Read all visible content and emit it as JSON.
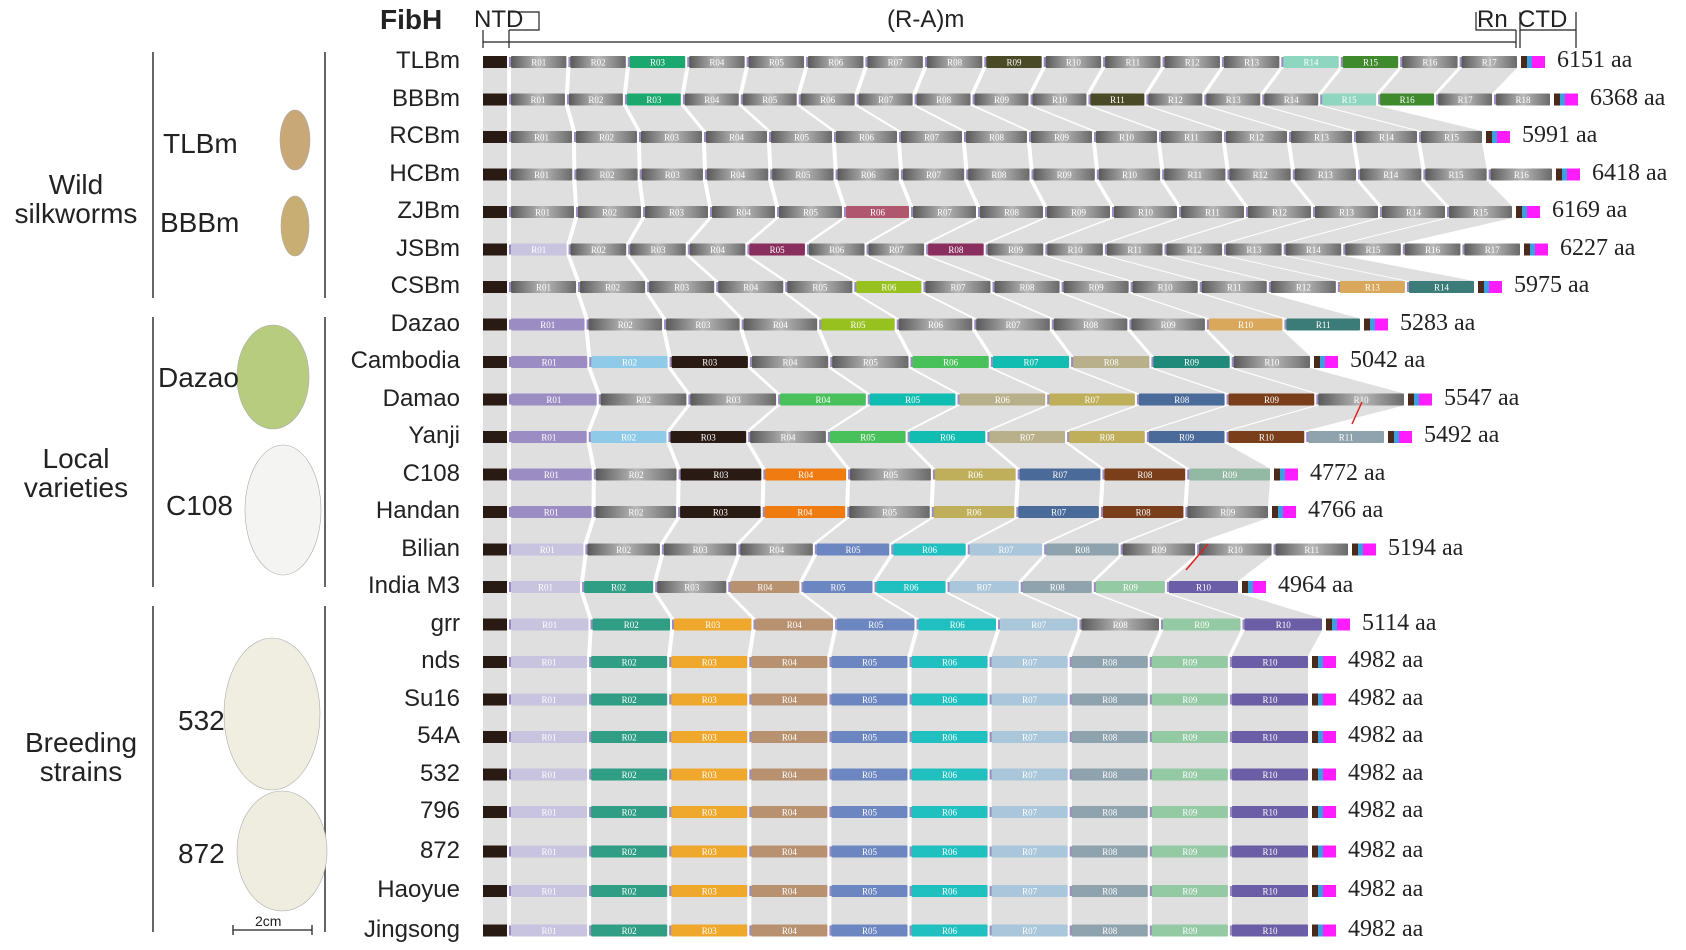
{
  "header": {
    "gene": "FibH",
    "ntd": "NTD",
    "repeats": "(R-A)m",
    "rn": "Rn",
    "ctd": "CTD"
  },
  "groups": [
    {
      "label": [
        "Wild",
        "silkworms"
      ],
      "cocoons": [
        "TLBm",
        "BBBm"
      ]
    },
    {
      "label": [
        "Local",
        "varieties"
      ],
      "cocoons": [
        "Dazao",
        "C108"
      ]
    },
    {
      "label": [
        "Breeding",
        "strains"
      ],
      "cocoons": [
        "532",
        "872"
      ]
    }
  ],
  "scale_bar": "2cm",
  "colors": {
    "ntd": "#2a1a14",
    "grey_segment": "#8c8c8c",
    "link": "#d4d4d4",
    "lavender": "#c8c3df",
    "purple": "#9b8cc4",
    "teal": "#2f9e84",
    "orange": "#efa72c",
    "tan": "#b89270",
    "blue": "#6b86c0",
    "cyan": "#20c0c0",
    "lightblue": "#a9c6da",
    "slate": "#8ea3ad",
    "mint": "#93c9a3",
    "violet": "#6b5ea6",
    "magenta": "#ff1dff",
    "mutation": "#e02020"
  },
  "strains": [
    {
      "name": "TLBm",
      "length": "6151 aa",
      "repeats": [
        {
          "label": "R01",
          "color": "grey"
        },
        {
          "label": "R02",
          "color": "grey"
        },
        {
          "label": "R03",
          "color": "#1aa86f"
        },
        {
          "label": "R04",
          "color": "grey"
        },
        {
          "label": "R05",
          "color": "grey"
        },
        {
          "label": "R06",
          "color": "grey"
        },
        {
          "label": "R07",
          "color": "grey"
        },
        {
          "label": "R08",
          "color": "grey"
        },
        {
          "label": "R09",
          "color": "#4a4a26"
        },
        {
          "label": "R10",
          "color": "grey"
        },
        {
          "label": "R11",
          "color": "grey"
        },
        {
          "label": "R12",
          "color": "grey"
        },
        {
          "label": "R13",
          "color": "grey"
        },
        {
          "label": "R14",
          "color": "#8fd6c0"
        },
        {
          "label": "R15",
          "color": "#3f8a2c"
        },
        {
          "label": "R16",
          "color": "grey"
        },
        {
          "label": "R17",
          "color": "grey"
        }
      ]
    },
    {
      "name": "BBBm",
      "length": "6368 aa",
      "repeats": [
        {
          "label": "R01",
          "color": "grey"
        },
        {
          "label": "R02",
          "color": "grey"
        },
        {
          "label": "R03",
          "color": "#1aa86f"
        },
        {
          "label": "R04",
          "color": "grey"
        },
        {
          "label": "R05",
          "color": "grey"
        },
        {
          "label": "R06",
          "color": "grey"
        },
        {
          "label": "R07",
          "color": "grey"
        },
        {
          "label": "R08",
          "color": "grey"
        },
        {
          "label": "R09",
          "color": "grey"
        },
        {
          "label": "R10",
          "color": "grey"
        },
        {
          "label": "R11",
          "color": "#4a4a26"
        },
        {
          "label": "R12",
          "color": "grey"
        },
        {
          "label": "R13",
          "color": "grey"
        },
        {
          "label": "R14",
          "color": "grey"
        },
        {
          "label": "R15",
          "color": "#8fd6c0"
        },
        {
          "label": "R16",
          "color": "#3f8a2c"
        },
        {
          "label": "R17",
          "color": "grey"
        },
        {
          "label": "R18",
          "color": "grey"
        }
      ]
    },
    {
      "name": "RCBm",
      "length": "5991 aa",
      "repeats": [
        {
          "label": "R01",
          "color": "grey"
        },
        {
          "label": "R02",
          "color": "grey"
        },
        {
          "label": "R03",
          "color": "grey"
        },
        {
          "label": "R04",
          "color": "grey"
        },
        {
          "label": "R05",
          "color": "grey"
        },
        {
          "label": "R06",
          "color": "grey"
        },
        {
          "label": "R07",
          "color": "grey"
        },
        {
          "label": "R08",
          "color": "grey"
        },
        {
          "label": "R09",
          "color": "grey"
        },
        {
          "label": "R10",
          "color": "grey"
        },
        {
          "label": "R11",
          "color": "grey"
        },
        {
          "label": "R12",
          "color": "grey"
        },
        {
          "label": "R13",
          "color": "grey"
        },
        {
          "label": "R14",
          "color": "grey"
        },
        {
          "label": "R15",
          "color": "grey"
        }
      ]
    },
    {
      "name": "HCBm",
      "length": "6418 aa",
      "repeats": [
        {
          "label": "R01",
          "color": "grey"
        },
        {
          "label": "R02",
          "color": "grey"
        },
        {
          "label": "R03",
          "color": "grey"
        },
        {
          "label": "R04",
          "color": "grey"
        },
        {
          "label": "R05",
          "color": "grey"
        },
        {
          "label": "R06",
          "color": "grey"
        },
        {
          "label": "R07",
          "color": "grey"
        },
        {
          "label": "R08",
          "color": "grey"
        },
        {
          "label": "R09",
          "color": "grey"
        },
        {
          "label": "R10",
          "color": "grey"
        },
        {
          "label": "R11",
          "color": "grey"
        },
        {
          "label": "R12",
          "color": "grey"
        },
        {
          "label": "R13",
          "color": "grey"
        },
        {
          "label": "R14",
          "color": "grey"
        },
        {
          "label": "R15",
          "color": "grey"
        },
        {
          "label": "R16",
          "color": "grey"
        }
      ]
    },
    {
      "name": "ZJBm",
      "length": "6169 aa",
      "repeats": [
        {
          "label": "R01",
          "color": "grey"
        },
        {
          "label": "R02",
          "color": "grey"
        },
        {
          "label": "R03",
          "color": "grey"
        },
        {
          "label": "R04",
          "color": "grey"
        },
        {
          "label": "R05",
          "color": "grey"
        },
        {
          "label": "R06",
          "color": "#b0566e"
        },
        {
          "label": "R07",
          "color": "grey"
        },
        {
          "label": "R08",
          "color": "grey"
        },
        {
          "label": "R09",
          "color": "grey"
        },
        {
          "label": "R10",
          "color": "grey"
        },
        {
          "label": "R11",
          "color": "grey"
        },
        {
          "label": "R12",
          "color": "grey"
        },
        {
          "label": "R13",
          "color": "grey"
        },
        {
          "label": "R14",
          "color": "grey"
        },
        {
          "label": "R15",
          "color": "grey"
        }
      ]
    },
    {
      "name": "JSBm",
      "length": "6227 aa",
      "repeats": [
        {
          "label": "R01",
          "color": "#c8c3df"
        },
        {
          "label": "R02",
          "color": "grey"
        },
        {
          "label": "R03",
          "color": "grey"
        },
        {
          "label": "R04",
          "color": "grey"
        },
        {
          "label": "R05",
          "color": "#8a2e5e"
        },
        {
          "label": "R06",
          "color": "grey"
        },
        {
          "label": "R07",
          "color": "grey"
        },
        {
          "label": "R08",
          "color": "#8a2e5e"
        },
        {
          "label": "R09",
          "color": "grey"
        },
        {
          "label": "R10",
          "color": "grey"
        },
        {
          "label": "R11",
          "color": "grey"
        },
        {
          "label": "R12",
          "color": "grey"
        },
        {
          "label": "R13",
          "color": "grey"
        },
        {
          "label": "R14",
          "color": "grey"
        },
        {
          "label": "R15",
          "color": "grey"
        },
        {
          "label": "R16",
          "color": "grey"
        },
        {
          "label": "R17",
          "color": "grey"
        }
      ]
    },
    {
      "name": "CSBm",
      "length": "5975 aa",
      "repeats": [
        {
          "label": "R01",
          "color": "grey"
        },
        {
          "label": "R02",
          "color": "grey"
        },
        {
          "label": "R03",
          "color": "grey"
        },
        {
          "label": "R04",
          "color": "grey"
        },
        {
          "label": "R05",
          "color": "grey"
        },
        {
          "label": "R06",
          "color": "#96c11f"
        },
        {
          "label": "R07",
          "color": "grey"
        },
        {
          "label": "R08",
          "color": "grey"
        },
        {
          "label": "R09",
          "color": "grey"
        },
        {
          "label": "R10",
          "color": "grey"
        },
        {
          "label": "R11",
          "color": "grey"
        },
        {
          "label": "R12",
          "color": "grey"
        },
        {
          "label": "R13",
          "color": "#d9a85a"
        },
        {
          "label": "R14",
          "color": "#3c7c78"
        }
      ]
    },
    {
      "name": "Dazao",
      "length": "5283 aa",
      "repeats": [
        {
          "label": "R01",
          "color": "#9b8cc4"
        },
        {
          "label": "R02",
          "color": "grey"
        },
        {
          "label": "R03",
          "color": "grey"
        },
        {
          "label": "R04",
          "color": "grey"
        },
        {
          "label": "R05",
          "color": "#96c11f"
        },
        {
          "label": "R06",
          "color": "grey"
        },
        {
          "label": "R07",
          "color": "grey"
        },
        {
          "label": "R08",
          "color": "grey"
        },
        {
          "label": "R09",
          "color": "grey"
        },
        {
          "label": "R10",
          "color": "#d9a85a"
        },
        {
          "label": "R11",
          "color": "#3c7c78"
        }
      ]
    },
    {
      "name": "Cambodia",
      "length": "5042 aa",
      "repeats": [
        {
          "label": "R01",
          "color": "#9b8cc4"
        },
        {
          "label": "R02",
          "color": "#8fcbe8"
        },
        {
          "label": "R03",
          "color": "#2a1a14"
        },
        {
          "label": "R04",
          "color": "grey"
        },
        {
          "label": "R05",
          "color": "grey"
        },
        {
          "label": "R06",
          "color": "#49c15a"
        },
        {
          "label": "R07",
          "color": "#10bdb0"
        },
        {
          "label": "R08",
          "color": "#b8b08a"
        },
        {
          "label": "R09",
          "color": "#1f8a7a"
        },
        {
          "label": "R10",
          "color": "grey"
        }
      ]
    },
    {
      "name": "Damao",
      "length": "5547 aa",
      "repeats": [
        {
          "label": "R01",
          "color": "#9b8cc4"
        },
        {
          "label": "R02",
          "color": "grey"
        },
        {
          "label": "R03",
          "color": "grey"
        },
        {
          "label": "R04",
          "color": "#49c15a"
        },
        {
          "label": "R05",
          "color": "#10bdb0"
        },
        {
          "label": "R06",
          "color": "#b8b08a"
        },
        {
          "label": "R07",
          "color": "#bfae5a"
        },
        {
          "label": "R08",
          "color": "#4a6a9a"
        },
        {
          "label": "R09",
          "color": "#7a3e1a"
        },
        {
          "label": "R10",
          "color": "grey"
        }
      ]
    },
    {
      "name": "Yanji",
      "length": "5492 aa",
      "repeats": [
        {
          "label": "R01",
          "color": "#9b8cc4"
        },
        {
          "label": "R02",
          "color": "#8fcbe8"
        },
        {
          "label": "R03",
          "color": "#2a1a14"
        },
        {
          "label": "R04",
          "color": "grey"
        },
        {
          "label": "R05",
          "color": "#49c15a"
        },
        {
          "label": "R06",
          "color": "#10bdb0"
        },
        {
          "label": "R07",
          "color": "#b8b08a"
        },
        {
          "label": "R08",
          "color": "#bfae5a"
        },
        {
          "label": "R09",
          "color": "#4a6a9a"
        },
        {
          "label": "R10",
          "color": "#7a3e1a"
        },
        {
          "label": "R11",
          "color": "#8ea3ad"
        }
      ]
    },
    {
      "name": "C108",
      "length": "4772 aa",
      "repeats": [
        {
          "label": "R01",
          "color": "#9b8cc4"
        },
        {
          "label": "R02",
          "color": "grey"
        },
        {
          "label": "R03",
          "color": "#2a1a14"
        },
        {
          "label": "R04",
          "color": "#f07b10"
        },
        {
          "label": "R05",
          "color": "grey"
        },
        {
          "label": "R06",
          "color": "#bfae5a"
        },
        {
          "label": "R07",
          "color": "#4a6a9a"
        },
        {
          "label": "R08",
          "color": "#7a3e1a"
        },
        {
          "label": "R09",
          "color": "#93b8a3"
        }
      ]
    },
    {
      "name": "Handan",
      "length": "4766 aa",
      "repeats": [
        {
          "label": "R01",
          "color": "#9b8cc4"
        },
        {
          "label": "R02",
          "color": "grey"
        },
        {
          "label": "R03",
          "color": "#2a1a14"
        },
        {
          "label": "R04",
          "color": "#f07b10"
        },
        {
          "label": "R05",
          "color": "grey"
        },
        {
          "label": "R06",
          "color": "#bfae5a"
        },
        {
          "label": "R07",
          "color": "#4a6a9a"
        },
        {
          "label": "R08",
          "color": "#7a3e1a"
        },
        {
          "label": "R09",
          "color": "grey"
        }
      ]
    },
    {
      "name": "Bilian",
      "length": "5194 aa",
      "repeats": [
        {
          "label": "R01",
          "color": "#c8c3df"
        },
        {
          "label": "R02",
          "color": "grey"
        },
        {
          "label": "R03",
          "color": "grey"
        },
        {
          "label": "R04",
          "color": "grey"
        },
        {
          "label": "R05",
          "color": "#6b86c0"
        },
        {
          "label": "R06",
          "color": "#20c0c0"
        },
        {
          "label": "R07",
          "color": "#a9c6da"
        },
        {
          "label": "R08",
          "color": "#8ea3ad"
        },
        {
          "label": "R09",
          "color": "grey"
        },
        {
          "label": "R10",
          "color": "grey"
        },
        {
          "label": "R11",
          "color": "grey"
        }
      ]
    },
    {
      "name": "India M3",
      "length": "4964 aa",
      "repeats": [
        {
          "label": "R01",
          "color": "#c8c3df"
        },
        {
          "label": "R02",
          "color": "#2f9e84"
        },
        {
          "label": "R03",
          "color": "grey"
        },
        {
          "label": "R04",
          "color": "#b89270"
        },
        {
          "label": "R05",
          "color": "#6b86c0"
        },
        {
          "label": "R06",
          "color": "#20c0c0"
        },
        {
          "label": "R07",
          "color": "#a9c6da"
        },
        {
          "label": "R08",
          "color": "#8ea3ad"
        },
        {
          "label": "R09",
          "color": "#93c9a3"
        },
        {
          "label": "R10",
          "color": "#6b5ea6"
        }
      ]
    },
    {
      "name": "grr",
      "length": "5114 aa",
      "repeats": [
        {
          "label": "R01",
          "color": "#c8c3df"
        },
        {
          "label": "R02",
          "color": "#2f9e84"
        },
        {
          "label": "R03",
          "color": "#efa72c"
        },
        {
          "label": "R04",
          "color": "#b89270"
        },
        {
          "label": "R05",
          "color": "#6b86c0"
        },
        {
          "label": "R06",
          "color": "#20c0c0"
        },
        {
          "label": "R07",
          "color": "#a9c6da"
        },
        {
          "label": "R08",
          "color": "grey"
        },
        {
          "label": "R09",
          "color": "#93c9a3"
        },
        {
          "label": "R10",
          "color": "#6b5ea6"
        }
      ]
    },
    {
      "name": "nds",
      "length": "4982 aa",
      "repeats": "standard"
    },
    {
      "name": "Su16",
      "length": "4982 aa",
      "repeats": "standard"
    },
    {
      "name": "54A",
      "length": "4982 aa",
      "repeats": "standard"
    },
    {
      "name": "532",
      "length": "4982 aa",
      "repeats": "standard"
    },
    {
      "name": "796",
      "length": "4982 aa",
      "repeats": "standard"
    },
    {
      "name": "872",
      "length": "4982 aa",
      "repeats": "standard"
    },
    {
      "name": "Haoyue",
      "length": "4982 aa",
      "repeats": "standard"
    },
    {
      "name": "Jingsong",
      "length": "4982 aa",
      "repeats": "standard"
    }
  ],
  "standard_repeats": [
    {
      "label": "R01",
      "color": "#c8c3df"
    },
    {
      "label": "R02",
      "color": "#2f9e84"
    },
    {
      "label": "R03",
      "color": "#efa72c"
    },
    {
      "label": "R04",
      "color": "#b89270"
    },
    {
      "label": "R05",
      "color": "#6b86c0"
    },
    {
      "label": "R06",
      "color": "#20c0c0"
    },
    {
      "label": "R07",
      "color": "#a9c6da"
    },
    {
      "label": "R08",
      "color": "#8ea3ad"
    },
    {
      "label": "R09",
      "color": "#93c9a3"
    },
    {
      "label": "R10",
      "color": "#6b5ea6"
    }
  ]
}
